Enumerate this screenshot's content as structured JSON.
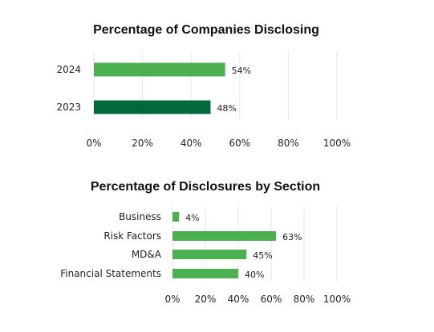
{
  "chart_data": [
    {
      "type": "bar",
      "orientation": "horizontal",
      "title": "Percentage of Companies Disclosing",
      "categories": [
        "2024",
        "2023"
      ],
      "values": [
        54,
        48
      ],
      "value_labels": [
        "54%",
        "48%"
      ],
      "bar_colors": [
        "#4caf50",
        "#00693e"
      ],
      "xlim": [
        0,
        100
      ],
      "xticks": [
        "0%",
        "20%",
        "40%",
        "60%",
        "80%",
        "100%"
      ],
      "grid": true
    },
    {
      "type": "bar",
      "orientation": "horizontal",
      "title": "Percentage of Disclosures by Section",
      "categories": [
        "Business",
        "Risk Factors",
        "MD&A",
        "Financial Statements"
      ],
      "values": [
        4,
        63,
        45,
        40
      ],
      "value_labels": [
        "4%",
        "63%",
        "45%",
        "40%"
      ],
      "bar_colors": [
        "#4caf50",
        "#4caf50",
        "#4caf50",
        "#4caf50"
      ],
      "xlim": [
        0,
        100
      ],
      "xticks": [
        "0%",
        "20%",
        "40%",
        "60%",
        "80%",
        "100%"
      ],
      "grid": true
    }
  ]
}
